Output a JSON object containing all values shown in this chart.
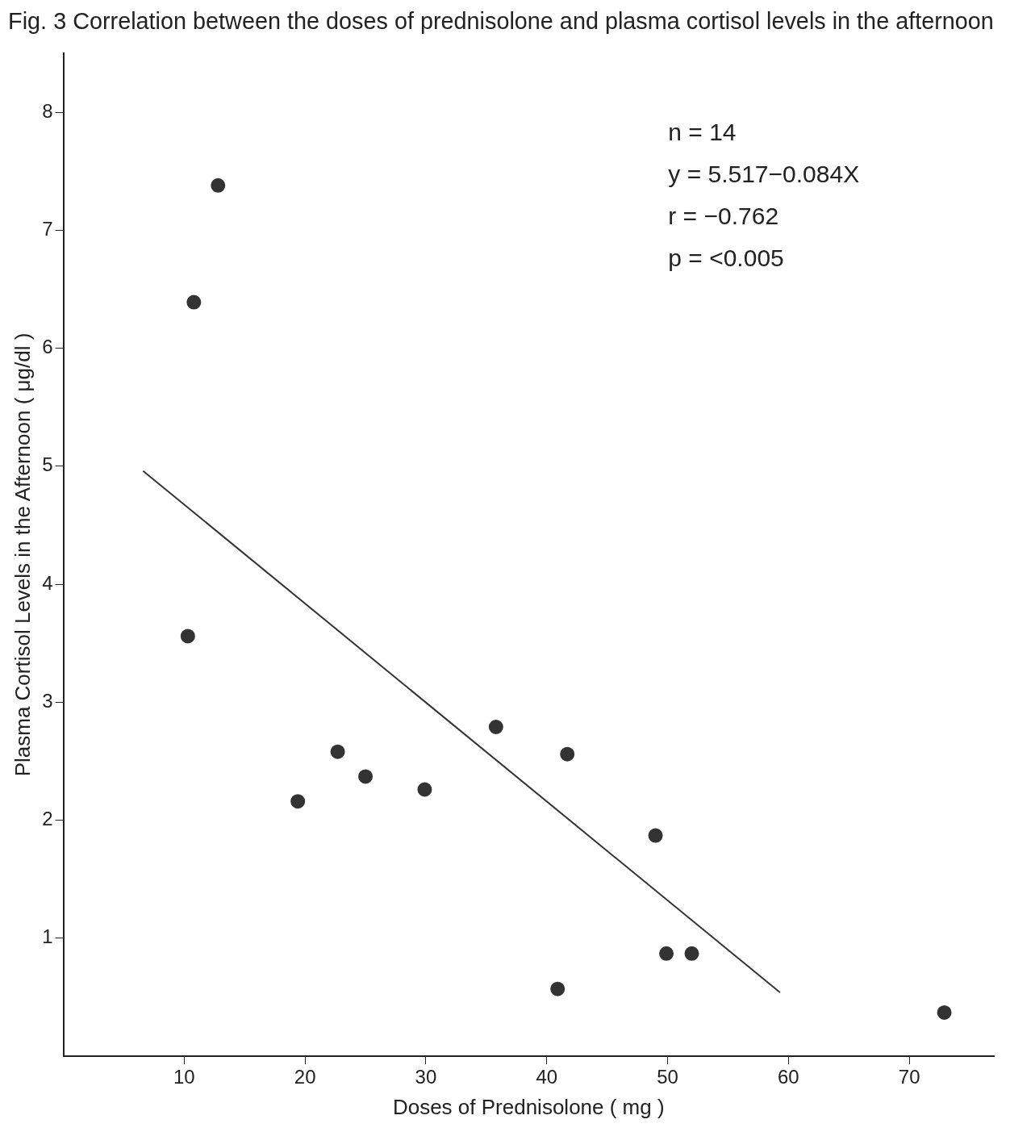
{
  "chart_data": {
    "type": "scatter",
    "title": "Fig. 3 Correlation between the doses of prednisolone and plasma cortisol levels in the afternoon",
    "xlabel": "Doses of Prednisolone ( mg )",
    "ylabel": "Plasma Cortisol Levels in the Afternoon ( μg/dl )",
    "x": [
      12.8,
      10.8,
      10.3,
      19.4,
      22.7,
      25.0,
      29.9,
      35.8,
      41.7,
      49.0,
      49.9,
      52.0,
      40.9,
      72.9
    ],
    "series": [
      {
        "type": "scatter",
        "color": "#333333",
        "marker": "circle",
        "values": [
          7.38,
          6.39,
          3.56,
          2.16,
          2.58,
          2.37,
          2.26,
          2.79,
          2.56,
          1.87,
          0.87,
          0.87,
          0.57,
          0.37
        ]
      },
      {
        "type": "line",
        "color": "#333333",
        "marker": "none",
        "line_style": "solid",
        "x": [
          6.6,
          59.3
        ],
        "values": [
          4.96,
          0.54
        ]
      }
    ],
    "xlim": [
      0,
      77
    ],
    "xticks": [
      10,
      20,
      30,
      40,
      50,
      60,
      70
    ],
    "ylim": [
      0,
      8.5
    ],
    "yticks": [
      1,
      2,
      3,
      4,
      5,
      6,
      7,
      8
    ],
    "grid": false,
    "legend": false,
    "annotations": [
      "n = 14",
      "y = 5.517−0.084X",
      "r = −0.762",
      "p = <0.005"
    ]
  }
}
